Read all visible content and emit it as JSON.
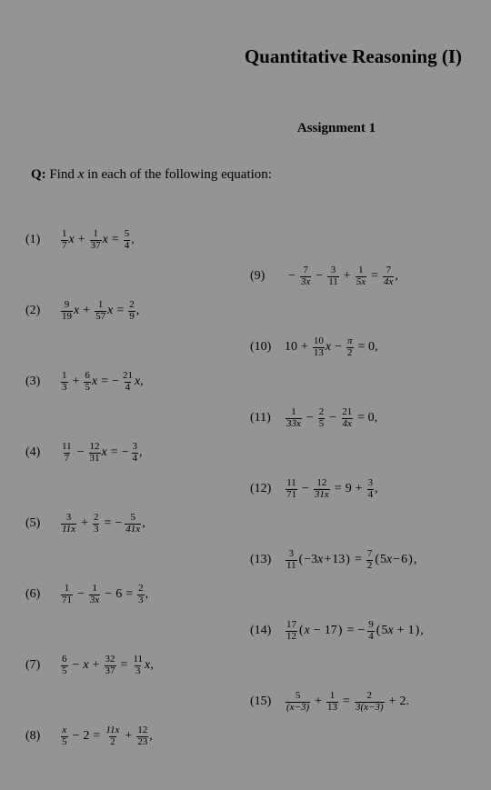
{
  "background_color": "#949494",
  "text_color": "#000000",
  "font_family": "Times New Roman",
  "title": "Quantitative Reasoning (I)",
  "title_fontsize": 21,
  "subtitle": "Assignment 1",
  "subtitle_fontsize": 15,
  "question_prefix": "Q:",
  "question_text": " Find ",
  "question_var": "x",
  "question_suffix": " in each of the following equation:",
  "eq_fontsize": 14,
  "frac_fontsize": 11,
  "labels": {
    "n1": "(1)",
    "n2": "(2)",
    "n3": "(3)",
    "n4": "(4)",
    "n5": "(5)",
    "n6": "(6)",
    "n7": "(7)",
    "n8": "(8)",
    "n9": "(9)",
    "n10": "(10)",
    "n11": "(11)",
    "n12": "(12)",
    "n13": "(13)",
    "n14": "(14)",
    "n15": "(15)"
  },
  "sym": {
    "x": "x",
    "plus": "+",
    "minus": "−",
    "eq": "=",
    "comma": ",",
    "eqzero": "= 0,",
    "lp": "(",
    "rp": ")",
    "pi": "π",
    "dot": "."
  },
  "eq1": {
    "a_n": "1",
    "a_d": "7",
    "b_n": "1",
    "b_d": "37",
    "c_n": "5",
    "c_d": "4"
  },
  "eq2": {
    "a_n": "9",
    "a_d": "19",
    "b_n": "1",
    "b_d": "57",
    "c_n": "2",
    "c_d": "9"
  },
  "eq3": {
    "a_n": "1",
    "a_d": "3",
    "b_n": "6",
    "b_d": "5",
    "c_n": "21",
    "c_d": "4"
  },
  "eq4": {
    "a_n": "11",
    "a_d": "7",
    "b_n": "12",
    "b_d": "31",
    "c_n": "3",
    "c_d": "4"
  },
  "eq5": {
    "a_n": "3",
    "a_d": "11x",
    "b_n": "2",
    "b_d": "3",
    "c_n": "5",
    "c_d": "41x"
  },
  "eq6": {
    "a_n": "1",
    "a_d": "71",
    "b_n": "1",
    "b_d": "3x",
    "c": "6",
    "d_n": "2",
    "d_d": "3"
  },
  "eq7": {
    "a_n": "6",
    "a_d": "5",
    "b_n": "32",
    "b_d": "37",
    "c_n": "11",
    "c_d": "3"
  },
  "eq8": {
    "a_n": "x",
    "a_d": "5",
    "b": "2",
    "c_n": "11x",
    "c_d": "2",
    "d_n": "12",
    "d_d": "23"
  },
  "eq9": {
    "a_n": "7",
    "a_d": "3x",
    "b_n": "3",
    "b_d": "11",
    "c_n": "1",
    "c_d": "5x",
    "d_n": "7",
    "d_d": "4x"
  },
  "eq10": {
    "a": "10",
    "b_n": "10",
    "b_d": "13",
    "c_n": "π",
    "c_d": "2"
  },
  "eq11": {
    "a_n": "1",
    "a_d": "33x",
    "b_n": "2",
    "b_d": "5",
    "c_n": "21",
    "c_d": "4x"
  },
  "eq12": {
    "a_n": "11",
    "a_d": "71",
    "b_n": "12",
    "b_d": "31x",
    "c": "9",
    "d_n": "3",
    "d_d": "4"
  },
  "eq13": {
    "a_n": "3",
    "a_d": "11",
    "in1a": "−3",
    "in1b": "13",
    "b_n": "7",
    "b_d": "2",
    "in2a": "5",
    "in2b": "6"
  },
  "eq14": {
    "a_n": "17",
    "a_d": "12",
    "in1b": "17",
    "b_n": "9",
    "b_d": "4",
    "in2a": "5",
    "in2b": "1"
  },
  "eq15": {
    "a_n": "5",
    "a_d": "(x−3)",
    "b_n": "1",
    "b_d": "13",
    "c_n": "2",
    "c_d": "3(x−3)",
    "d": "2"
  }
}
